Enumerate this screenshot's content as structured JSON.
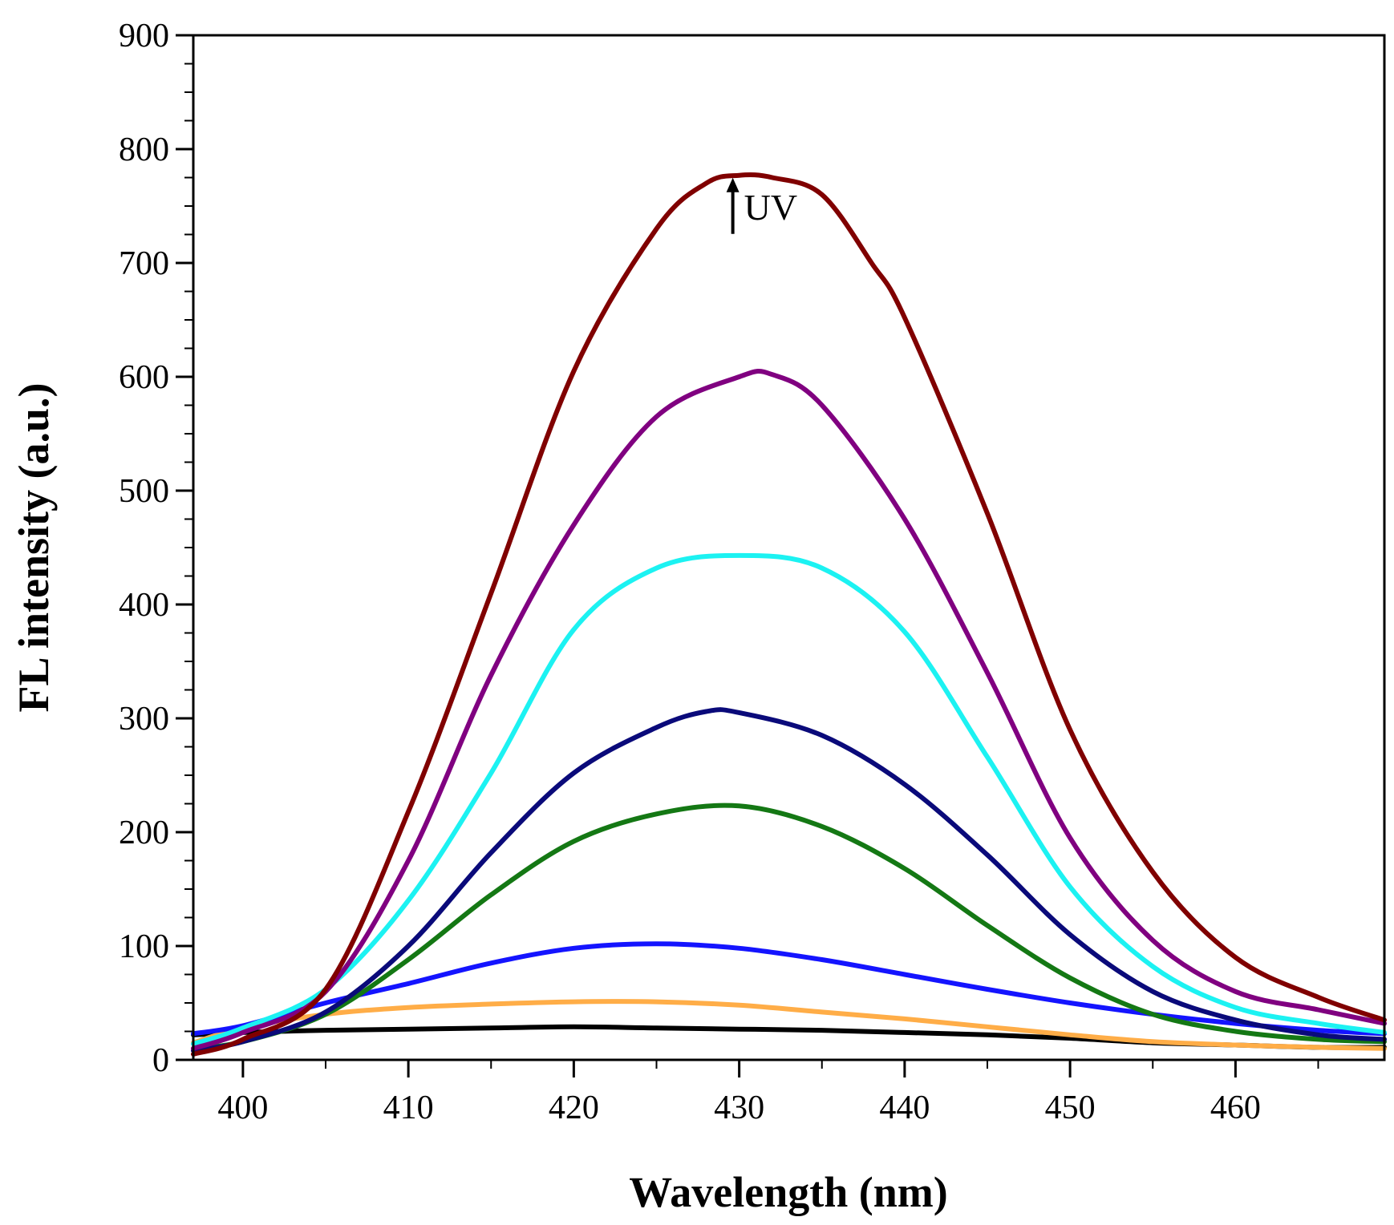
{
  "chart_data": {
    "type": "line",
    "title": "",
    "xlabel": "Wavelength (nm)",
    "ylabel": "FL intensity (a.u.)",
    "xlim": [
      397,
      469
    ],
    "ylim": [
      0,
      900
    ],
    "xticks": [
      400,
      410,
      420,
      430,
      440,
      450,
      460
    ],
    "yticks": [
      0,
      100,
      200,
      300,
      400,
      500,
      600,
      700,
      800,
      900
    ],
    "xtick_labels": [
      "400",
      "410",
      "420",
      "430",
      "440",
      "450",
      "460"
    ],
    "ytick_labels": [
      "0",
      "100",
      "200",
      "300",
      "400",
      "500",
      "600",
      "700",
      "800",
      "900"
    ],
    "x_minor_step": 5,
    "y_minor_step": 25,
    "grid": false,
    "annotation": {
      "text": "UV",
      "arrow": "up",
      "x": 430,
      "y": 810
    },
    "series": [
      {
        "name": "black",
        "color": "#000000",
        "x": [
          397,
          400,
          405,
          410,
          415,
          420,
          425,
          430,
          435,
          440,
          445,
          450,
          455,
          460,
          465,
          469
        ],
        "y": [
          22,
          24,
          26,
          27,
          28,
          29,
          28,
          27,
          26,
          24,
          22,
          19,
          15,
          13,
          11,
          11
        ]
      },
      {
        "name": "orange",
        "color": "#ffad47",
        "x": [
          397,
          400,
          405,
          410,
          415,
          420,
          425,
          430,
          435,
          440,
          445,
          450,
          455,
          460,
          465,
          469
        ],
        "y": [
          15,
          28,
          40,
          46,
          49,
          51,
          51,
          48,
          42,
          36,
          29,
          22,
          16,
          13,
          11,
          10
        ]
      },
      {
        "name": "blue",
        "color": "#1414ff",
        "x": [
          397,
          400,
          405,
          410,
          415,
          420,
          425,
          430,
          435,
          440,
          445,
          450,
          455,
          460,
          465,
          469
        ],
        "y": [
          23,
          30,
          50,
          67,
          85,
          98,
          102,
          98,
          88,
          75,
          62,
          50,
          40,
          32,
          26,
          23
        ]
      },
      {
        "name": "green",
        "color": "#147814",
        "x": [
          397,
          400,
          405,
          410,
          415,
          420,
          425,
          430,
          435,
          440,
          445,
          450,
          455,
          460,
          465,
          469
        ],
        "y": [
          10,
          16,
          40,
          88,
          145,
          192,
          216,
          223,
          205,
          168,
          118,
          72,
          40,
          25,
          18,
          16
        ]
      },
      {
        "name": "navy",
        "color": "#0a0a7a",
        "x": [
          397,
          400,
          405,
          410,
          415,
          420,
          425,
          428,
          430,
          435,
          440,
          445,
          450,
          455,
          460,
          465,
          469
        ],
        "y": [
          8,
          16,
          42,
          100,
          182,
          252,
          292,
          306,
          305,
          285,
          242,
          180,
          110,
          60,
          35,
          22,
          18
        ]
      },
      {
        "name": "cyan",
        "color": "#1cf2f2",
        "x": [
          397,
          400,
          405,
          410,
          415,
          420,
          425,
          430,
          435,
          440,
          445,
          450,
          455,
          460,
          465,
          469
        ],
        "y": [
          14,
          28,
          62,
          140,
          252,
          378,
          432,
          443,
          432,
          376,
          266,
          152,
          82,
          46,
          32,
          24
        ]
      },
      {
        "name": "purple",
        "color": "#800080",
        "x": [
          397,
          400,
          405,
          410,
          415,
          420,
          425,
          430,
          432,
          435,
          440,
          445,
          450,
          455,
          460,
          465,
          469
        ],
        "y": [
          10,
          24,
          60,
          175,
          338,
          470,
          565,
          600,
          602,
          575,
          475,
          340,
          195,
          105,
          60,
          44,
          32
        ]
      },
      {
        "name": "maroon",
        "color": "#800000",
        "x": [
          397,
          400,
          405,
          410,
          415,
          420,
          425,
          428,
          430,
          432,
          435,
          438,
          440,
          445,
          450,
          455,
          460,
          465,
          469
        ],
        "y": [
          5,
          18,
          62,
          218,
          410,
          605,
          730,
          770,
          777,
          775,
          760,
          700,
          652,
          480,
          290,
          165,
          90,
          55,
          35
        ]
      }
    ]
  }
}
